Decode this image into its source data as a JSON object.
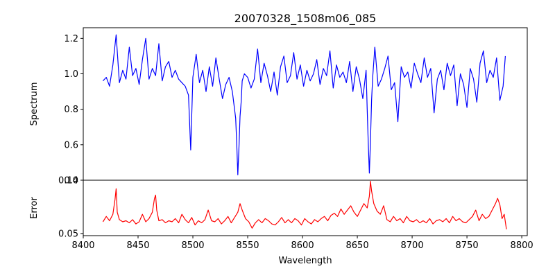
{
  "figure": {
    "title": "20070328_1508m06_085",
    "xlabel": "Wavelength"
  },
  "chart_data": [
    {
      "type": "line",
      "panel": "top",
      "title": "20070328_1508m06_085",
      "ylabel": "Spectrum",
      "xlabel": "",
      "xlim": [
        8400,
        8805
      ],
      "ylim": [
        0.4,
        1.26
      ],
      "yticks": [
        0.4,
        0.6,
        0.8,
        1.0,
        1.2
      ],
      "ytick_labels": [
        "0.4",
        "0.6",
        "0.8",
        "1.0",
        "1.2"
      ],
      "grid": false,
      "color": "#0000ff",
      "x": [
        8418,
        8421,
        8424,
        8427,
        8430,
        8433,
        8436,
        8439,
        8442,
        8445,
        8448,
        8451,
        8454,
        8457,
        8460,
        8463,
        8466,
        8469,
        8472,
        8475,
        8478,
        8481,
        8484,
        8487,
        8490,
        8493,
        8496,
        8498,
        8500,
        8503,
        8506,
        8509,
        8512,
        8515,
        8518,
        8521,
        8524,
        8527,
        8530,
        8533,
        8536,
        8539,
        8540,
        8541,
        8542,
        8543,
        8544,
        8545,
        8547,
        8550,
        8553,
        8556,
        8559,
        8562,
        8565,
        8568,
        8571,
        8574,
        8577,
        8580,
        8583,
        8586,
        8589,
        8592,
        8595,
        8598,
        8601,
        8604,
        8607,
        8610,
        8613,
        8616,
        8619,
        8622,
        8625,
        8628,
        8631,
        8634,
        8637,
        8640,
        8643,
        8646,
        8649,
        8652,
        8655,
        8658,
        8659,
        8660,
        8661,
        8662,
        8663,
        8664,
        8666,
        8669,
        8672,
        8675,
        8678,
        8681,
        8684,
        8687,
        8690,
        8693,
        8696,
        8699,
        8702,
        8705,
        8708,
        8711,
        8714,
        8717,
        8720,
        8723,
        8726,
        8729,
        8732,
        8735,
        8738,
        8741,
        8744,
        8747,
        8750,
        8753,
        8756,
        8759,
        8762,
        8765,
        8768,
        8771,
        8774,
        8777,
        8780,
        8783,
        8785
      ],
      "y": [
        0.96,
        0.98,
        0.93,
        1.05,
        1.22,
        0.95,
        1.02,
        0.97,
        1.15,
        0.99,
        1.03,
        0.94,
        1.08,
        1.2,
        0.97,
        1.03,
        0.99,
        1.17,
        0.96,
        1.04,
        1.07,
        0.98,
        1.02,
        0.97,
        0.95,
        0.93,
        0.88,
        0.57,
        0.98,
        1.11,
        0.95,
        1.02,
        0.9,
        1.04,
        0.93,
        1.09,
        0.97,
        0.86,
        0.94,
        0.98,
        0.9,
        0.75,
        0.61,
        0.43,
        0.58,
        0.76,
        0.84,
        0.96,
        1.0,
        0.98,
        0.92,
        0.97,
        1.14,
        0.95,
        1.06,
        0.99,
        0.9,
        1.01,
        0.88,
        1.04,
        1.1,
        0.95,
        0.99,
        1.12,
        0.97,
        1.05,
        0.93,
        1.02,
        0.96,
        1.0,
        1.08,
        0.94,
        1.03,
        0.99,
        1.13,
        0.92,
        1.05,
        0.98,
        1.01,
        0.95,
        1.07,
        0.9,
        1.04,
        0.97,
        0.86,
        1.02,
        0.8,
        0.6,
        0.44,
        0.62,
        0.85,
        0.98,
        1.15,
        0.93,
        0.97,
        1.03,
        1.1,
        0.91,
        0.95,
        0.73,
        1.04,
        0.98,
        1.01,
        0.92,
        1.06,
        1.0,
        0.95,
        1.09,
        0.98,
        1.03,
        0.78,
        0.97,
        1.02,
        0.91,
        1.06,
        0.99,
        1.05,
        0.82,
        1.0,
        0.94,
        0.81,
        1.03,
        0.97,
        0.84,
        1.06,
        1.13,
        0.95,
        1.02,
        0.98,
        1.09,
        0.85,
        0.93,
        1.1
      ]
    },
    {
      "type": "line",
      "panel": "bottom",
      "ylabel": "Error",
      "xlabel": "Wavelength",
      "xlim": [
        8400,
        8805
      ],
      "ylim": [
        0.048,
        0.1
      ],
      "yticks": [
        0.05,
        0.1
      ],
      "ytick_labels": [
        "0.05",
        "0.10"
      ],
      "xticks": [
        8400,
        8450,
        8500,
        8550,
        8600,
        8650,
        8700,
        8750,
        8800
      ],
      "xtick_labels": [
        "8400",
        "8450",
        "8500",
        "8550",
        "8600",
        "8650",
        "8700",
        "8750",
        "8800"
      ],
      "grid": false,
      "color": "#ff0000",
      "x": [
        8418,
        8421,
        8424,
        8427,
        8429,
        8430,
        8431,
        8433,
        8436,
        8439,
        8442,
        8445,
        8448,
        8451,
        8454,
        8457,
        8460,
        8463,
        8465,
        8466,
        8467,
        8469,
        8472,
        8475,
        8478,
        8481,
        8484,
        8487,
        8490,
        8493,
        8496,
        8499,
        8502,
        8505,
        8508,
        8511,
        8514,
        8517,
        8520,
        8523,
        8526,
        8529,
        8532,
        8535,
        8538,
        8541,
        8543,
        8545,
        8548,
        8551,
        8554,
        8557,
        8560,
        8563,
        8566,
        8569,
        8572,
        8575,
        8578,
        8581,
        8584,
        8587,
        8590,
        8593,
        8596,
        8599,
        8602,
        8605,
        8608,
        8611,
        8614,
        8617,
        8620,
        8623,
        8626,
        8629,
        8632,
        8635,
        8638,
        8641,
        8644,
        8647,
        8650,
        8653,
        8656,
        8659,
        8661,
        8662,
        8663,
        8665,
        8668,
        8671,
        8674,
        8677,
        8680,
        8683,
        8686,
        8689,
        8692,
        8695,
        8698,
        8701,
        8704,
        8707,
        8710,
        8713,
        8716,
        8719,
        8722,
        8725,
        8728,
        8731,
        8734,
        8737,
        8740,
        8743,
        8746,
        8749,
        8752,
        8755,
        8758,
        8761,
        8764,
        8767,
        8770,
        8773,
        8776,
        8778,
        8780,
        8782,
        8784,
        8786
      ],
      "y": [
        0.061,
        0.066,
        0.062,
        0.068,
        0.082,
        0.092,
        0.07,
        0.063,
        0.061,
        0.062,
        0.06,
        0.063,
        0.059,
        0.061,
        0.068,
        0.061,
        0.064,
        0.07,
        0.083,
        0.086,
        0.072,
        0.062,
        0.063,
        0.06,
        0.062,
        0.061,
        0.064,
        0.06,
        0.068,
        0.063,
        0.06,
        0.065,
        0.058,
        0.062,
        0.06,
        0.063,
        0.072,
        0.062,
        0.061,
        0.064,
        0.059,
        0.062,
        0.066,
        0.06,
        0.065,
        0.07,
        0.078,
        0.072,
        0.064,
        0.061,
        0.055,
        0.06,
        0.063,
        0.06,
        0.064,
        0.062,
        0.059,
        0.058,
        0.061,
        0.065,
        0.06,
        0.063,
        0.06,
        0.064,
        0.062,
        0.058,
        0.064,
        0.061,
        0.059,
        0.063,
        0.061,
        0.064,
        0.066,
        0.062,
        0.067,
        0.069,
        0.066,
        0.073,
        0.068,
        0.072,
        0.076,
        0.07,
        0.066,
        0.072,
        0.078,
        0.074,
        0.085,
        0.099,
        0.09,
        0.078,
        0.071,
        0.068,
        0.076,
        0.063,
        0.061,
        0.066,
        0.062,
        0.064,
        0.06,
        0.066,
        0.062,
        0.061,
        0.063,
        0.06,
        0.062,
        0.06,
        0.064,
        0.059,
        0.062,
        0.063,
        0.061,
        0.064,
        0.06,
        0.066,
        0.062,
        0.064,
        0.061,
        0.06,
        0.063,
        0.066,
        0.072,
        0.062,
        0.068,
        0.064,
        0.066,
        0.072,
        0.078,
        0.083,
        0.077,
        0.064,
        0.068,
        0.054
      ]
    }
  ]
}
